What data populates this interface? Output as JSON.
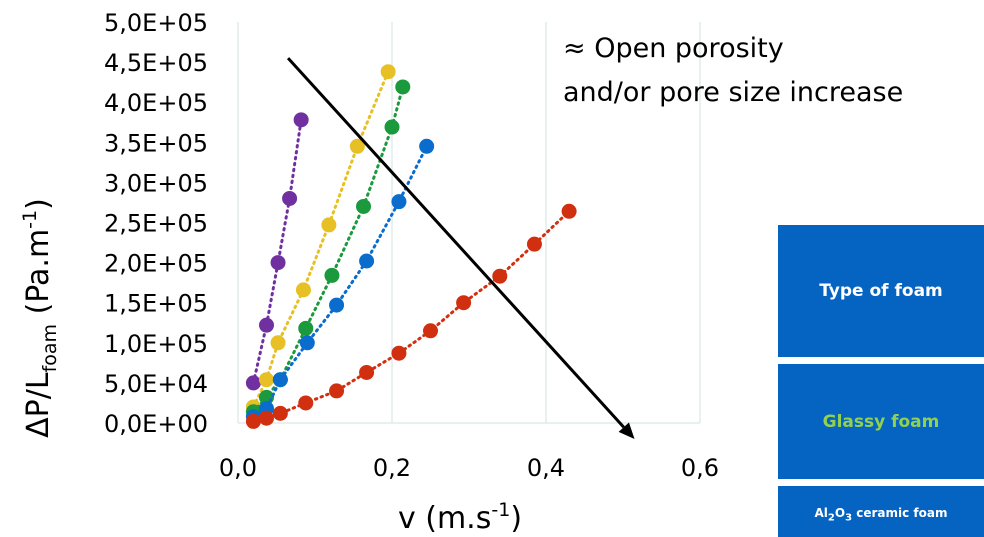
{
  "chart_data": {
    "type": "scatter",
    "title": "",
    "xlabel": "v (m.s",
    "xlabel_sup": "-1",
    "xlabel_close": ")",
    "ylabel_main": "ΔP/L",
    "ylabel_sub": "foam",
    "ylabel_mid": " (Pa.m",
    "ylabel_sup": "-1",
    "ylabel_close": ")",
    "xlim": [
      0,
      0.6
    ],
    "ylim": [
      0,
      500000
    ],
    "x_ticks": [
      0.0,
      0.2,
      0.4,
      0.6
    ],
    "x_tick_labels": [
      "0,0",
      "0,2",
      "0,4",
      "0,6"
    ],
    "y_ticks": [
      0,
      50000,
      100000,
      150000,
      200000,
      250000,
      300000,
      350000,
      400000,
      450000,
      500000
    ],
    "y_tick_labels": [
      "0,0E+00",
      "5,0E+04",
      "1,0E+05",
      "1,5E+05",
      "2,0E+05",
      "2,5E+05",
      "3,0E+05",
      "3,5E+05",
      "4,0E+05",
      "4,5E+05",
      "5,0E+05"
    ],
    "grid": "vertical",
    "line_style": "dotted",
    "series": [
      {
        "color": "#7030a0",
        "x": [
          0.02,
          0.037,
          0.052,
          0.067,
          0.082
        ],
        "y": [
          50000,
          122000,
          200000,
          280000,
          378000
        ]
      },
      {
        "color": "#e6c024",
        "x": [
          0.02,
          0.037,
          0.052,
          0.085,
          0.118,
          0.155,
          0.195
        ],
        "y": [
          20000,
          54000,
          100000,
          166000,
          247000,
          345000,
          438000
        ]
      },
      {
        "color": "#1a9a3c",
        "x": [
          0.02,
          0.037,
          0.055,
          0.088,
          0.122,
          0.163,
          0.2,
          0.214
        ],
        "y": [
          14000,
          32000,
          54000,
          118000,
          184000,
          270000,
          369000,
          419000
        ]
      },
      {
        "color": "#0a6ccc",
        "x": [
          0.02,
          0.037,
          0.055,
          0.09,
          0.128,
          0.167,
          0.209,
          0.245
        ],
        "y": [
          8000,
          18000,
          54000,
          100000,
          147000,
          202000,
          276000,
          345000
        ]
      },
      {
        "color": "#d03010",
        "x": [
          0.02,
          0.037,
          0.055,
          0.088,
          0.128,
          0.167,
          0.209,
          0.25,
          0.293,
          0.34,
          0.385,
          0.43
        ],
        "y": [
          2000,
          6000,
          12000,
          25000,
          40000,
          63000,
          87000,
          115000,
          150000,
          183000,
          223000,
          264000
        ]
      }
    ],
    "arrow": {
      "from": [
        0.065,
        455000
      ],
      "to": [
        0.515,
        -20000
      ]
    },
    "annotation_line1": "≈ Open porosity",
    "annotation_line2": "and/or pore size increase"
  },
  "panel": {
    "header": "Type of foam",
    "glassy": "Glassy foam",
    "ceramic_pre": "Al",
    "ceramic_sub1": "2",
    "ceramic_mid": "O",
    "ceramic_sub2": "3",
    "ceramic_post": " ceramic foam"
  }
}
